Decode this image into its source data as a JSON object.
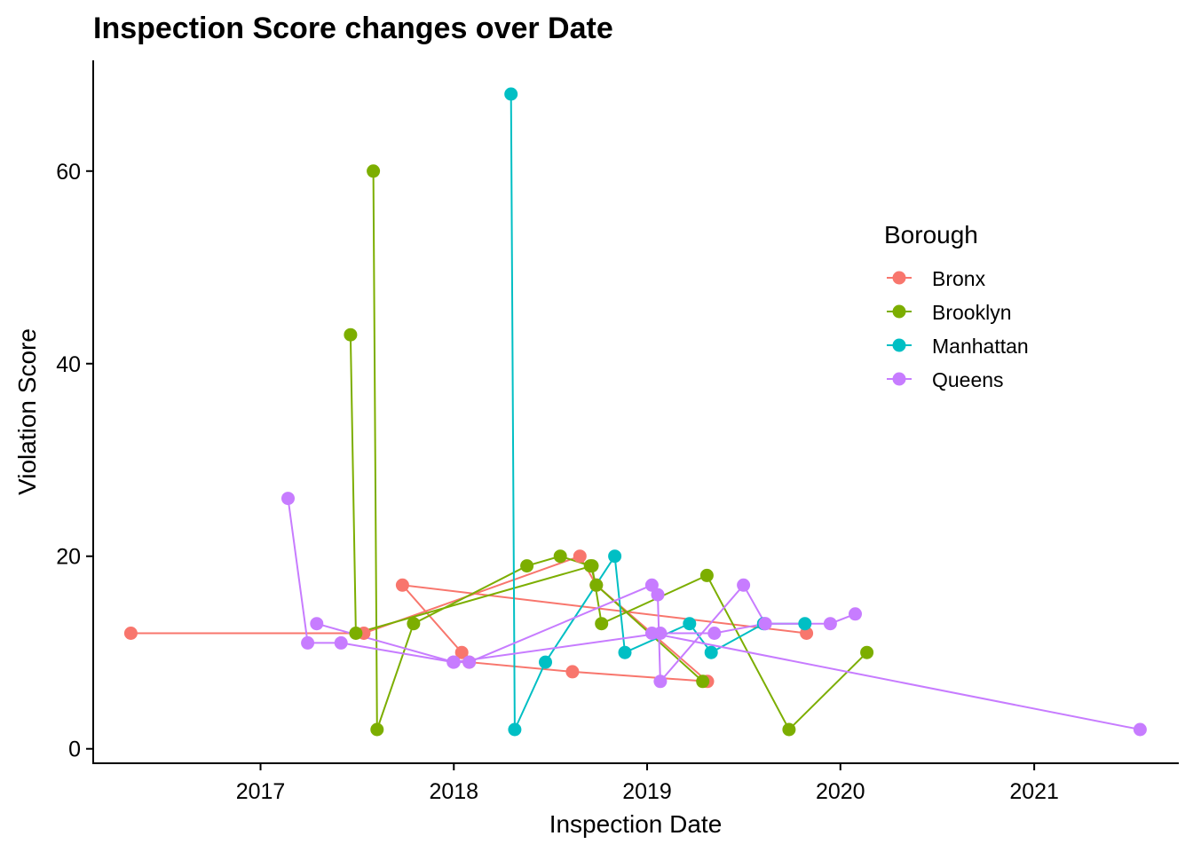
{
  "chart_data": {
    "type": "line",
    "title": "Inspection Score changes over Date",
    "xlabel": "Inspection Date",
    "ylabel": "Violation Score",
    "xlim": [
      "2016-02-20",
      "2021-10-01"
    ],
    "ylim": [
      -1.5,
      71.5
    ],
    "x_ticks": [
      {
        "date": "2017-01-01",
        "label": "2017"
      },
      {
        "date": "2018-01-01",
        "label": "2018"
      },
      {
        "date": "2019-01-01",
        "label": "2019"
      },
      {
        "date": "2020-01-01",
        "label": "2020"
      },
      {
        "date": "2021-01-01",
        "label": "2021"
      }
    ],
    "y_ticks": [
      0,
      20,
      40,
      60
    ],
    "grid": false,
    "legend": {
      "title": "Borough",
      "position": "right"
    },
    "series": [
      {
        "name": "Bronx",
        "color": "#F8766D",
        "points": [
          {
            "x": "2016-05-01",
            "y": 12
          },
          {
            "x": "2017-07-15",
            "y": 12
          },
          {
            "x": "2018-08-27",
            "y": 20
          },
          {
            "x": "2018-09-27",
            "y": 17
          },
          {
            "x": "2019-04-25",
            "y": 7
          },
          {
            "x": "2018-08-13",
            "y": 8
          },
          {
            "x": "2018-01-30",
            "y": 9
          },
          {
            "x": "2018-01-16",
            "y": 10
          },
          {
            "x": "2017-09-26",
            "y": 17
          },
          {
            "x": "2019-10-29",
            "y": 12
          }
        ]
      },
      {
        "name": "Brooklyn",
        "color": "#7CAE00",
        "points": [
          {
            "x": "2017-06-20",
            "y": 43
          },
          {
            "x": "2017-06-30",
            "y": 12
          },
          {
            "x": "2018-09-19",
            "y": 19
          },
          {
            "x": "2018-10-07",
            "y": 13
          },
          {
            "x": "2019-04-24",
            "y": 18
          },
          {
            "x": "2019-09-26",
            "y": 2
          },
          {
            "x": "2020-02-20",
            "y": 10
          }
        ]
      },
      {
        "name": "Brooklyn",
        "color": "#7CAE00",
        "points": [
          {
            "x": "2017-08-02",
            "y": 60
          },
          {
            "x": "2017-08-09",
            "y": 2
          },
          {
            "x": "2017-10-17",
            "y": 13
          },
          {
            "x": "2018-05-19",
            "y": 19
          },
          {
            "x": "2018-07-21",
            "y": 20
          },
          {
            "x": "2018-09-16",
            "y": 19
          },
          {
            "x": "2018-09-27",
            "y": 17
          },
          {
            "x": "2019-04-16",
            "y": 7
          }
        ]
      },
      {
        "name": "Manhattan",
        "color": "#00BFC4",
        "points": [
          {
            "x": "2018-04-19",
            "y": 68
          },
          {
            "x": "2018-04-26",
            "y": 2
          },
          {
            "x": "2018-06-23",
            "y": 9
          },
          {
            "x": "2018-11-01",
            "y": 20
          },
          {
            "x": "2018-11-20",
            "y": 10
          },
          {
            "x": "2019-03-22",
            "y": 13
          },
          {
            "x": "2019-05-02",
            "y": 10
          },
          {
            "x": "2019-08-09",
            "y": 13
          },
          {
            "x": "2019-10-26",
            "y": 13
          }
        ]
      },
      {
        "name": "Queens",
        "color": "#C77CFF",
        "points": [
          {
            "x": "2017-02-22",
            "y": 26
          },
          {
            "x": "2017-03-31",
            "y": 11
          },
          {
            "x": "2017-06-02",
            "y": 11
          },
          {
            "x": "2017-12-31",
            "y": 9
          },
          {
            "x": "2019-01-26",
            "y": 12
          },
          {
            "x": "2019-05-08",
            "y": 12
          },
          {
            "x": "2019-08-12",
            "y": 13
          },
          {
            "x": "2019-12-13",
            "y": 13
          },
          {
            "x": "2020-01-29",
            "y": 14
          }
        ]
      },
      {
        "name": "Queens",
        "color": "#C77CFF",
        "points": [
          {
            "x": "2017-04-17",
            "y": 13
          },
          {
            "x": "2018-01-01",
            "y": 9
          },
          {
            "x": "2018-01-30",
            "y": 9
          },
          {
            "x": "2019-01-10",
            "y": 17
          },
          {
            "x": "2019-01-21",
            "y": 16
          },
          {
            "x": "2019-01-26",
            "y": 7
          },
          {
            "x": "2019-07-02",
            "y": 17
          },
          {
            "x": "2019-08-12",
            "y": 13
          }
        ]
      },
      {
        "name": "Queens",
        "color": "#C77CFF",
        "points": [
          {
            "x": "2019-01-10",
            "y": 12
          },
          {
            "x": "2021-07-20",
            "y": 2
          }
        ]
      }
    ]
  },
  "legend_items": [
    {
      "name": "Bronx",
      "color": "#F8766D"
    },
    {
      "name": "Brooklyn",
      "color": "#7CAE00"
    },
    {
      "name": "Manhattan",
      "color": "#00BFC4"
    },
    {
      "name": "Queens",
      "color": "#C77CFF"
    }
  ]
}
